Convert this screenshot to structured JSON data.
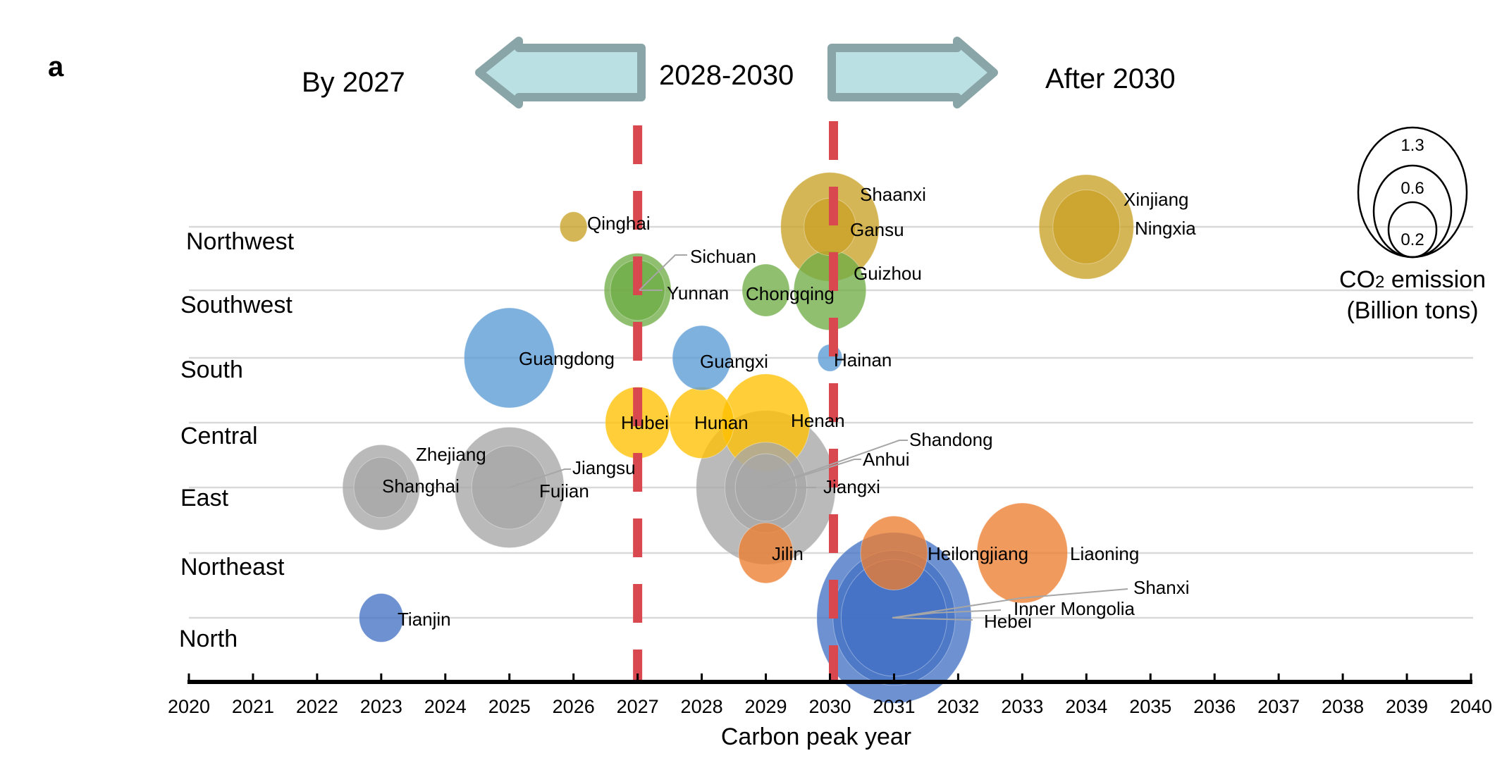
{
  "panel_label": "a",
  "phases": {
    "early": "By 2027",
    "middle": "2028-2030",
    "late": "After 2030"
  },
  "colors": {
    "northwest": "#C9A227",
    "southwest": "#70AD47",
    "south": "#5B9BD5",
    "central": "#FFC000",
    "east": "#A6A6A6",
    "northeast": "#ED7D31",
    "north": "#4472C4",
    "threshold_line": "#D9484F",
    "arrow_fill": "#BBE0E3",
    "arrow_stroke": "#8AA5A8",
    "gridline": "#D9D9D9"
  },
  "chart_data": {
    "type": "bubble",
    "title": "",
    "xlabel": "Carbon peak year",
    "ylabel": "",
    "xlim": [
      2020,
      2040
    ],
    "x_ticks": [
      "2020",
      "2021",
      "2022",
      "2023",
      "2024",
      "2025",
      "2026",
      "2027",
      "2028",
      "2029",
      "2030",
      "2031",
      "2032",
      "2033",
      "2034",
      "2035",
      "2036",
      "2037",
      "2038",
      "2039",
      "2040"
    ],
    "categories": [
      "Northwest",
      "Southwest",
      "South",
      "Central",
      "East",
      "Northeast",
      "North"
    ],
    "threshold_years": [
      2027,
      2030
    ],
    "size_legend": {
      "title_main": "CO",
      "title_sub": "2",
      "title_rest": " emission",
      "title_unit": "(Billion tons)",
      "values": [
        1.3,
        0.6,
        0.2
      ],
      "labels": [
        "1.3",
        "0.6",
        "0.2"
      ]
    },
    "grid": true,
    "series": [
      {
        "name": "Qinghai",
        "region": "Northwest",
        "year": 2026,
        "emission": 0.05
      },
      {
        "name": "Shaanxi",
        "region": "Northwest",
        "year": 2030,
        "emission": 0.65
      },
      {
        "name": "Gansu",
        "region": "Northwest",
        "year": 2030,
        "emission": 0.18
      },
      {
        "name": "Xinjiang",
        "region": "Northwest",
        "year": 2034,
        "emission": 0.6
      },
      {
        "name": "Ningxia",
        "region": "Northwest",
        "year": 2034,
        "emission": 0.3
      },
      {
        "name": "Sichuan",
        "region": "Southwest",
        "year": 2027,
        "emission": 0.3
      },
      {
        "name": "Yunnan",
        "region": "Southwest",
        "year": 2027,
        "emission": 0.2
      },
      {
        "name": "Chongqing",
        "region": "Southwest",
        "year": 2029,
        "emission": 0.15
      },
      {
        "name": "Guizhou",
        "region": "Southwest",
        "year": 2030,
        "emission": 0.35
      },
      {
        "name": "Guangdong",
        "region": "South",
        "year": 2025,
        "emission": 0.55
      },
      {
        "name": "Guangxi",
        "region": "South",
        "year": 2028,
        "emission": 0.23
      },
      {
        "name": "Hainan",
        "region": "South",
        "year": 2030,
        "emission": 0.04
      },
      {
        "name": "Hubei",
        "region": "Central",
        "year": 2027,
        "emission": 0.28
      },
      {
        "name": "Hunan",
        "region": "Central",
        "year": 2028,
        "emission": 0.28
      },
      {
        "name": "Henan",
        "region": "Central",
        "year": 2029,
        "emission": 0.52
      },
      {
        "name": "Zhejiang",
        "region": "East",
        "year": 2023,
        "emission": 0.4
      },
      {
        "name": "Shanghai",
        "region": "East",
        "year": 2023,
        "emission": 0.2
      },
      {
        "name": "Jiangsu",
        "region": "East",
        "year": 2025,
        "emission": 0.8
      },
      {
        "name": "Fujian",
        "region": "East",
        "year": 2025,
        "emission": 0.38
      },
      {
        "name": "Shandong",
        "region": "East",
        "year": 2029,
        "emission": 1.3
      },
      {
        "name": "Anhui",
        "region": "East",
        "year": 2029,
        "emission": 0.45
      },
      {
        "name": "Jiangxi",
        "region": "East",
        "year": 2029,
        "emission": 0.25
      },
      {
        "name": "Jilin",
        "region": "Northeast",
        "year": 2029,
        "emission": 0.2
      },
      {
        "name": "Heilongjiang",
        "region": "Northeast",
        "year": 2031,
        "emission": 0.3
      },
      {
        "name": "Liaoning",
        "region": "Northeast",
        "year": 2033,
        "emission": 0.55
      },
      {
        "name": "Tianjin",
        "region": "North",
        "year": 2023,
        "emission": 0.13
      },
      {
        "name": "Shanxi",
        "region": "North",
        "year": 2031,
        "emission": 1.6
      },
      {
        "name": "Inner Mongolia",
        "region": "North",
        "year": 2031,
        "emission": 1.0
      },
      {
        "name": "Hebei",
        "region": "North",
        "year": 2031,
        "emission": 0.75
      }
    ]
  }
}
